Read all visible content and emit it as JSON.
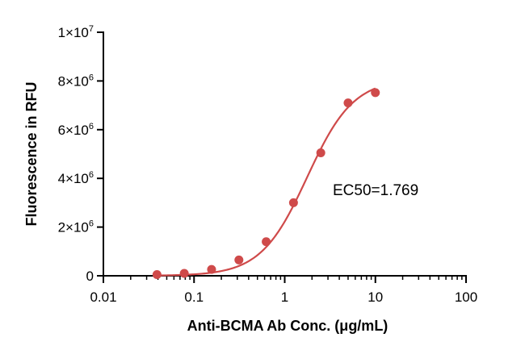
{
  "chart_data": {
    "type": "scatter",
    "title": "",
    "xlabel": "Anti-BCMA Ab Conc. (μg/mL)",
    "ylabel": "Fluorescence in RFU",
    "x_scale": "log",
    "xlim": [
      0.01,
      100
    ],
    "ylim": [
      0,
      10000000
    ],
    "x_ticks": [
      {
        "value": 0.01,
        "label": "0.01"
      },
      {
        "value": 0.1,
        "label": "0.1"
      },
      {
        "value": 1,
        "label": "1"
      },
      {
        "value": 10,
        "label": "10"
      },
      {
        "value": 100,
        "label": "100"
      }
    ],
    "y_ticks": [
      {
        "value": 0,
        "mant": "0",
        "exp": ""
      },
      {
        "value": 2000000,
        "mant": "2×10",
        "exp": "6"
      },
      {
        "value": 4000000,
        "mant": "4×10",
        "exp": "6"
      },
      {
        "value": 6000000,
        "mant": "6×10",
        "exp": "6"
      },
      {
        "value": 8000000,
        "mant": "8×10",
        "exp": "6"
      },
      {
        "value": 10000000,
        "mant": "1×10",
        "exp": "7"
      }
    ],
    "series": [
      {
        "x": [
          0.039,
          0.078,
          0.156,
          0.3125,
          0.625,
          1.25,
          2.5,
          5,
          10
        ],
        "y": [
          50000,
          100000,
          260000,
          650000,
          1400000,
          3000000,
          5050000,
          7100000,
          7520000
        ]
      }
    ],
    "fit": {
      "bottom": 0,
      "top": 8100000,
      "ec50": 1.769,
      "hill": 1.7
    },
    "annotation": "EC50=1.769",
    "grid": false,
    "legend": "none",
    "color": "#cf4a4a"
  }
}
